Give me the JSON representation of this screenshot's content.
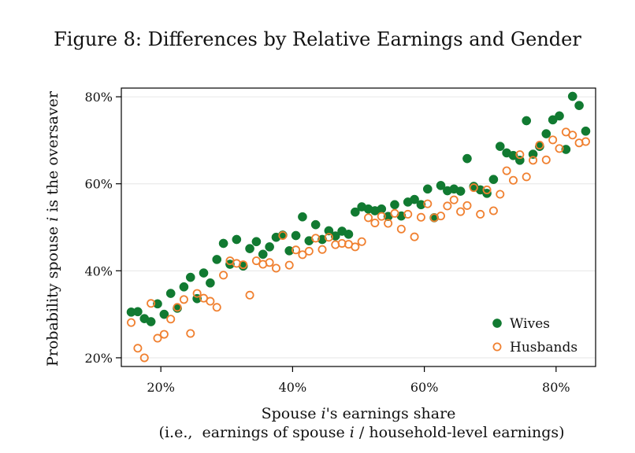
{
  "figure_title": "Figure 8: Differences by Relative Earnings and Gender",
  "chart_data": {
    "type": "scatter",
    "title": "Figure 8: Differences by Relative Earnings and Gender",
    "ylabel": "Probability spouse i is the oversaver",
    "ylabel_parts": [
      "Probability spouse ",
      "i",
      " is the oversaver"
    ],
    "xlabel_line1_parts": [
      "Spouse ",
      "i",
      "'s earnings share"
    ],
    "xlabel_line2_parts": [
      "(i.e.,  earnings of spouse ",
      "i",
      " / household-level earnings)"
    ],
    "xlim": [
      0.14,
      0.86
    ],
    "ylim": [
      0.18,
      0.82
    ],
    "x_ticks": [
      0.2,
      0.4,
      0.6,
      0.8
    ],
    "x_tick_labels": [
      "20%",
      "40%",
      "60%",
      "80%"
    ],
    "y_ticks": [
      0.2,
      0.4,
      0.6,
      0.8
    ],
    "y_tick_labels": [
      "20%",
      "40%",
      "60%",
      "80%"
    ],
    "grid": "horizontal",
    "legend_position": "bottom-right",
    "series": [
      {
        "name": "Wives",
        "color": "#117a31",
        "marker": "filled-circle",
        "points": [
          [
            0.155,
            0.305
          ],
          [
            0.165,
            0.306
          ],
          [
            0.175,
            0.29
          ],
          [
            0.185,
            0.283
          ],
          [
            0.195,
            0.324
          ],
          [
            0.205,
            0.3
          ],
          [
            0.215,
            0.348
          ],
          [
            0.225,
            0.314
          ],
          [
            0.235,
            0.363
          ],
          [
            0.245,
            0.385
          ],
          [
            0.255,
            0.336
          ],
          [
            0.265,
            0.395
          ],
          [
            0.275,
            0.372
          ],
          [
            0.285,
            0.426
          ],
          [
            0.295,
            0.463
          ],
          [
            0.305,
            0.415
          ],
          [
            0.315,
            0.472
          ],
          [
            0.325,
            0.411
          ],
          [
            0.335,
            0.451
          ],
          [
            0.345,
            0.467
          ],
          [
            0.355,
            0.438
          ],
          [
            0.365,
            0.455
          ],
          [
            0.375,
            0.477
          ],
          [
            0.385,
            0.482
          ],
          [
            0.395,
            0.446
          ],
          [
            0.405,
            0.481
          ],
          [
            0.415,
            0.524
          ],
          [
            0.425,
            0.469
          ],
          [
            0.435,
            0.506
          ],
          [
            0.445,
            0.472
          ],
          [
            0.455,
            0.492
          ],
          [
            0.465,
            0.48
          ],
          [
            0.475,
            0.491
          ],
          [
            0.485,
            0.484
          ],
          [
            0.495,
            0.535
          ],
          [
            0.505,
            0.547
          ],
          [
            0.515,
            0.542
          ],
          [
            0.525,
            0.538
          ],
          [
            0.535,
            0.542
          ],
          [
            0.545,
            0.525
          ],
          [
            0.555,
            0.552
          ],
          [
            0.565,
            0.526
          ],
          [
            0.575,
            0.558
          ],
          [
            0.585,
            0.564
          ],
          [
            0.595,
            0.552
          ],
          [
            0.605,
            0.588
          ],
          [
            0.615,
            0.522
          ],
          [
            0.625,
            0.596
          ],
          [
            0.635,
            0.584
          ],
          [
            0.645,
            0.588
          ],
          [
            0.655,
            0.583
          ],
          [
            0.665,
            0.658
          ],
          [
            0.675,
            0.594
          ],
          [
            0.685,
            0.586
          ],
          [
            0.695,
            0.578
          ],
          [
            0.705,
            0.61
          ],
          [
            0.715,
            0.686
          ],
          [
            0.725,
            0.671
          ],
          [
            0.735,
            0.665
          ],
          [
            0.745,
            0.654
          ],
          [
            0.755,
            0.745
          ],
          [
            0.765,
            0.668
          ],
          [
            0.775,
            0.686
          ],
          [
            0.785,
            0.715
          ],
          [
            0.795,
            0.747
          ],
          [
            0.805,
            0.756
          ],
          [
            0.815,
            0.679
          ],
          [
            0.825,
            0.801
          ],
          [
            0.835,
            0.78
          ],
          [
            0.845,
            0.721
          ]
        ]
      },
      {
        "name": "Husbands",
        "color": "#f08030",
        "marker": "hollow-circle",
        "points": [
          [
            0.155,
            0.281
          ],
          [
            0.165,
            0.222
          ],
          [
            0.175,
            0.2
          ],
          [
            0.185,
            0.325
          ],
          [
            0.195,
            0.245
          ],
          [
            0.205,
            0.254
          ],
          [
            0.215,
            0.289
          ],
          [
            0.225,
            0.316
          ],
          [
            0.235,
            0.334
          ],
          [
            0.245,
            0.256
          ],
          [
            0.255,
            0.348
          ],
          [
            0.265,
            0.337
          ],
          [
            0.275,
            0.33
          ],
          [
            0.285,
            0.316
          ],
          [
            0.295,
            0.39
          ],
          [
            0.305,
            0.423
          ],
          [
            0.315,
            0.417
          ],
          [
            0.325,
            0.414
          ],
          [
            0.335,
            0.344
          ],
          [
            0.345,
            0.423
          ],
          [
            0.355,
            0.415
          ],
          [
            0.365,
            0.419
          ],
          [
            0.375,
            0.406
          ],
          [
            0.385,
            0.481
          ],
          [
            0.395,
            0.413
          ],
          [
            0.405,
            0.448
          ],
          [
            0.415,
            0.437
          ],
          [
            0.425,
            0.445
          ],
          [
            0.435,
            0.475
          ],
          [
            0.445,
            0.449
          ],
          [
            0.455,
            0.477
          ],
          [
            0.465,
            0.46
          ],
          [
            0.475,
            0.463
          ],
          [
            0.485,
            0.461
          ],
          [
            0.495,
            0.455
          ],
          [
            0.505,
            0.467
          ],
          [
            0.515,
            0.522
          ],
          [
            0.525,
            0.51
          ],
          [
            0.535,
            0.525
          ],
          [
            0.545,
            0.509
          ],
          [
            0.555,
            0.532
          ],
          [
            0.565,
            0.496
          ],
          [
            0.575,
            0.53
          ],
          [
            0.585,
            0.478
          ],
          [
            0.595,
            0.523
          ],
          [
            0.605,
            0.554
          ],
          [
            0.615,
            0.522
          ],
          [
            0.625,
            0.526
          ],
          [
            0.635,
            0.549
          ],
          [
            0.645,
            0.563
          ],
          [
            0.655,
            0.536
          ],
          [
            0.665,
            0.55
          ],
          [
            0.675,
            0.591
          ],
          [
            0.685,
            0.53
          ],
          [
            0.695,
            0.586
          ],
          [
            0.705,
            0.538
          ],
          [
            0.715,
            0.576
          ],
          [
            0.725,
            0.63
          ],
          [
            0.735,
            0.608
          ],
          [
            0.745,
            0.667
          ],
          [
            0.755,
            0.616
          ],
          [
            0.765,
            0.654
          ],
          [
            0.775,
            0.689
          ],
          [
            0.785,
            0.655
          ],
          [
            0.795,
            0.701
          ],
          [
            0.805,
            0.681
          ],
          [
            0.815,
            0.719
          ],
          [
            0.825,
            0.712
          ],
          [
            0.835,
            0.694
          ],
          [
            0.845,
            0.697
          ]
        ]
      }
    ]
  }
}
